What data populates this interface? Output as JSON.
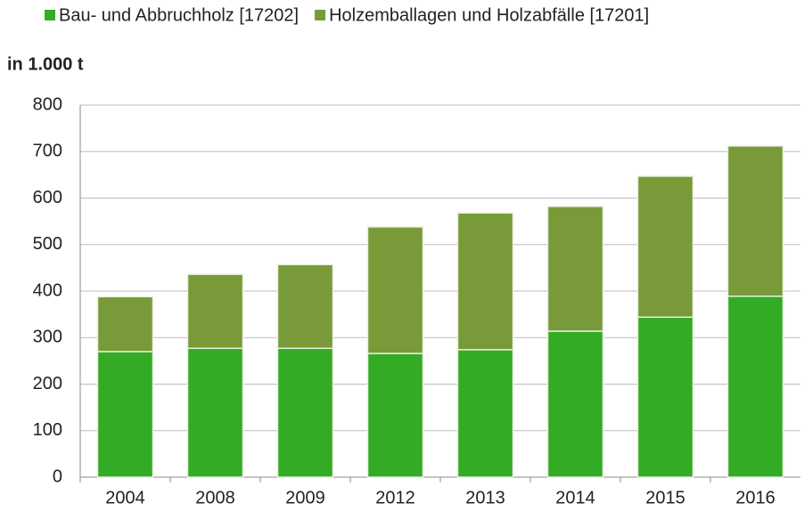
{
  "chart_data": {
    "type": "stacked_bar",
    "y_label": "in 1.000 t",
    "categories": [
      "2004",
      "2008",
      "2009",
      "2012",
      "2013",
      "2014",
      "2015",
      "2016"
    ],
    "series": [
      {
        "name": "Bau- und Abbruchholz [17202]",
        "color": "#33ab24",
        "values": [
          270,
          277,
          277,
          266,
          274,
          314,
          344,
          389
        ]
      },
      {
        "name": "Holzemballagen und Holzabfälle [17201]",
        "color": "#789a38",
        "values": [
          118,
          159,
          180,
          272,
          294,
          268,
          303,
          323
        ]
      }
    ],
    "ylim": [
      0,
      800
    ],
    "yticks": [
      0,
      100,
      200,
      300,
      400,
      500,
      600,
      700,
      800
    ],
    "grid": true
  }
}
